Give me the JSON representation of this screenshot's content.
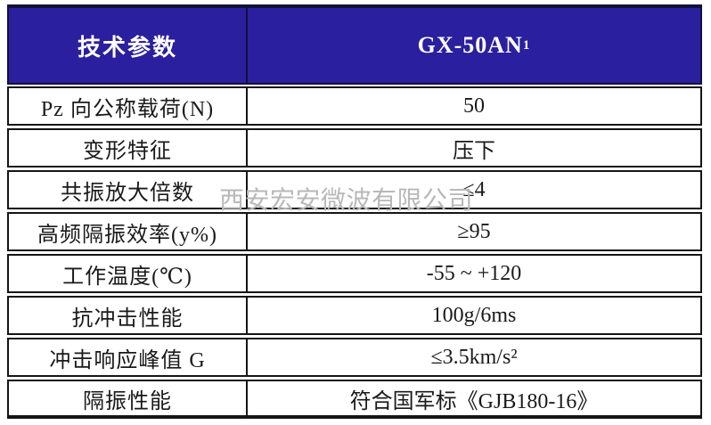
{
  "watermark": {
    "text": "西安宏安微波有限公司",
    "color": "#b8b8b8"
  },
  "table": {
    "header": {
      "param_column_label": "技术参数",
      "model_name": "GX-50AN",
      "model_subscript": "1",
      "bg_color": "#2a1f9e",
      "text_color": "#ffffff"
    },
    "border_color": "#151515",
    "rows": [
      {
        "label": "Pz 向公称载荷(N)",
        "value": "50"
      },
      {
        "label": "变形特征",
        "value": "压下"
      },
      {
        "label": "共振放大倍数",
        "value": "≤4"
      },
      {
        "label": "高频隔振效率(y%)",
        "value": "≥95"
      },
      {
        "label": "工作温度(℃)",
        "value": "-55 ~ +120"
      },
      {
        "label": "抗冲击性能",
        "value": "100g/6ms"
      },
      {
        "label": "冲击响应峰值 G",
        "value": "≤3.5km/s²"
      },
      {
        "label": "隔振性能",
        "value": "符合国军标《GJB180-16》"
      }
    ]
  }
}
